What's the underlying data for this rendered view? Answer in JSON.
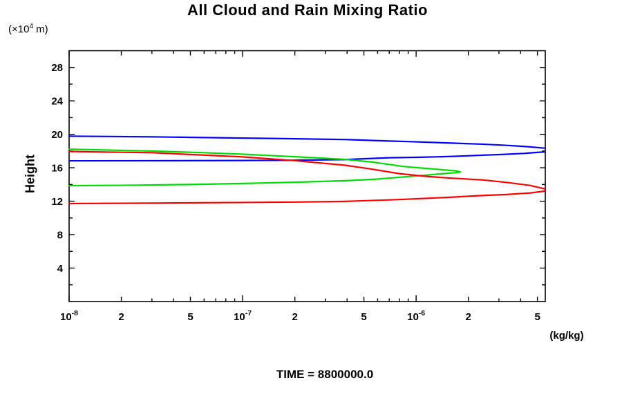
{
  "chart_data": {
    "type": "line",
    "title": "All Cloud and Rain Mixing Ratio",
    "grid": false,
    "legend": false,
    "x_axis": {
      "scale": "log",
      "min": 1e-08,
      "max": 5.55e-06,
      "unit": "(kg/kg)",
      "ticks": [
        {
          "label": "10",
          "exp": "-8",
          "value": 1e-08
        },
        {
          "label": "2",
          "value": 2e-08
        },
        {
          "label": "5",
          "value": 5e-08
        },
        {
          "label": "10",
          "exp": "-7",
          "value": 1e-07
        },
        {
          "label": "2",
          "value": 2e-07
        },
        {
          "label": "5",
          "value": 5e-07
        },
        {
          "label": "10",
          "exp": "-6",
          "value": 1e-06
        },
        {
          "label": "2",
          "value": 2e-06
        },
        {
          "label": "5",
          "value": 5e-06
        }
      ],
      "minor_ticks": [
        3e-08,
        4e-08,
        6e-08,
        7e-08,
        8e-08,
        9e-08,
        3e-07,
        4e-07,
        6e-07,
        7e-07,
        8e-07,
        9e-07,
        3e-06,
        4e-06
      ]
    },
    "y_axis": {
      "label": "Height",
      "unit": {
        "prefix": "(×10",
        "exponent": "4",
        "suffix": " m)"
      },
      "min": 0,
      "max": 30,
      "major_ticks": [
        4,
        8,
        12,
        16,
        20,
        24,
        28
      ],
      "minor_ticks": [
        2,
        6,
        10,
        14,
        18,
        22,
        26
      ]
    },
    "series": [
      {
        "name": "blue",
        "color": "#0000ff",
        "points": [
          [
            1e-08,
            19.78
          ],
          [
            3e-08,
            19.7
          ],
          [
            1e-07,
            19.55
          ],
          [
            2e-07,
            19.47
          ],
          [
            3.9e-07,
            19.38
          ],
          [
            7e-07,
            19.2
          ],
          [
            1e-06,
            19.1
          ],
          [
            1.6e-06,
            18.95
          ],
          [
            2.4e-06,
            18.82
          ],
          [
            3.2e-06,
            18.7
          ],
          [
            4.2e-06,
            18.55
          ],
          [
            5.5e-06,
            18.35
          ],
          [
            6.3e-06,
            18.05
          ],
          [
            5.5e-06,
            17.9
          ],
          [
            4.2e-06,
            17.72
          ],
          [
            3.2e-06,
            17.6
          ],
          [
            2.4e-06,
            17.5
          ],
          [
            1.6e-06,
            17.35
          ],
          [
            1e-06,
            17.25
          ],
          [
            7e-07,
            17.2
          ],
          [
            3.9e-07,
            16.98
          ],
          [
            2e-07,
            16.9
          ],
          [
            1e-07,
            16.87
          ],
          [
            3e-08,
            16.84
          ],
          [
            1e-08,
            16.83
          ]
        ]
      },
      {
        "name": "green",
        "color": "#00dd00",
        "points": [
          [
            1e-08,
            18.22
          ],
          [
            3e-08,
            18.0
          ],
          [
            6e-08,
            17.8
          ],
          [
            1e-07,
            17.62
          ],
          [
            2e-07,
            17.32
          ],
          [
            3.9e-07,
            17.0
          ],
          [
            5.5e-07,
            16.7
          ],
          [
            7e-07,
            16.4
          ],
          [
            8.5e-07,
            16.15
          ],
          [
            1.1e-06,
            15.95
          ],
          [
            1.4e-06,
            15.78
          ],
          [
            1.7e-06,
            15.62
          ],
          [
            1.8e-06,
            15.5
          ],
          [
            1.7e-06,
            15.42
          ],
          [
            1.4e-06,
            15.28
          ],
          [
            1.1e-06,
            15.1
          ],
          [
            8.5e-07,
            14.9
          ],
          [
            6e-07,
            14.65
          ],
          [
            3.9e-07,
            14.45
          ],
          [
            2e-07,
            14.27
          ],
          [
            1e-07,
            14.12
          ],
          [
            5e-08,
            14.0
          ],
          [
            2e-08,
            13.9
          ],
          [
            1e-08,
            13.86
          ]
        ]
      },
      {
        "name": "red",
        "color": "#ff0000",
        "points": [
          [
            1e-08,
            17.95
          ],
          [
            3e-08,
            17.8
          ],
          [
            1e-07,
            17.3
          ],
          [
            2e-07,
            16.85
          ],
          [
            3.9e-07,
            16.3
          ],
          [
            5.5e-07,
            15.85
          ],
          [
            8e-07,
            15.3
          ],
          [
            1.1e-06,
            15.0
          ],
          [
            1.6e-06,
            14.75
          ],
          [
            2.4e-06,
            14.55
          ],
          [
            3.3e-06,
            14.25
          ],
          [
            4.5e-06,
            13.9
          ],
          [
            6e-06,
            13.3
          ],
          [
            4.5e-06,
            12.98
          ],
          [
            3.3e-06,
            12.8
          ],
          [
            2.4e-06,
            12.68
          ],
          [
            1.6e-06,
            12.48
          ],
          [
            1.1e-06,
            12.33
          ],
          [
            8e-07,
            12.2
          ],
          [
            3.9e-07,
            11.98
          ],
          [
            2e-07,
            11.9
          ],
          [
            1e-07,
            11.85
          ],
          [
            3e-08,
            11.77
          ],
          [
            1e-08,
            11.72
          ]
        ]
      }
    ],
    "annotations": {
      "time": "TIME = 8800000.0"
    }
  }
}
